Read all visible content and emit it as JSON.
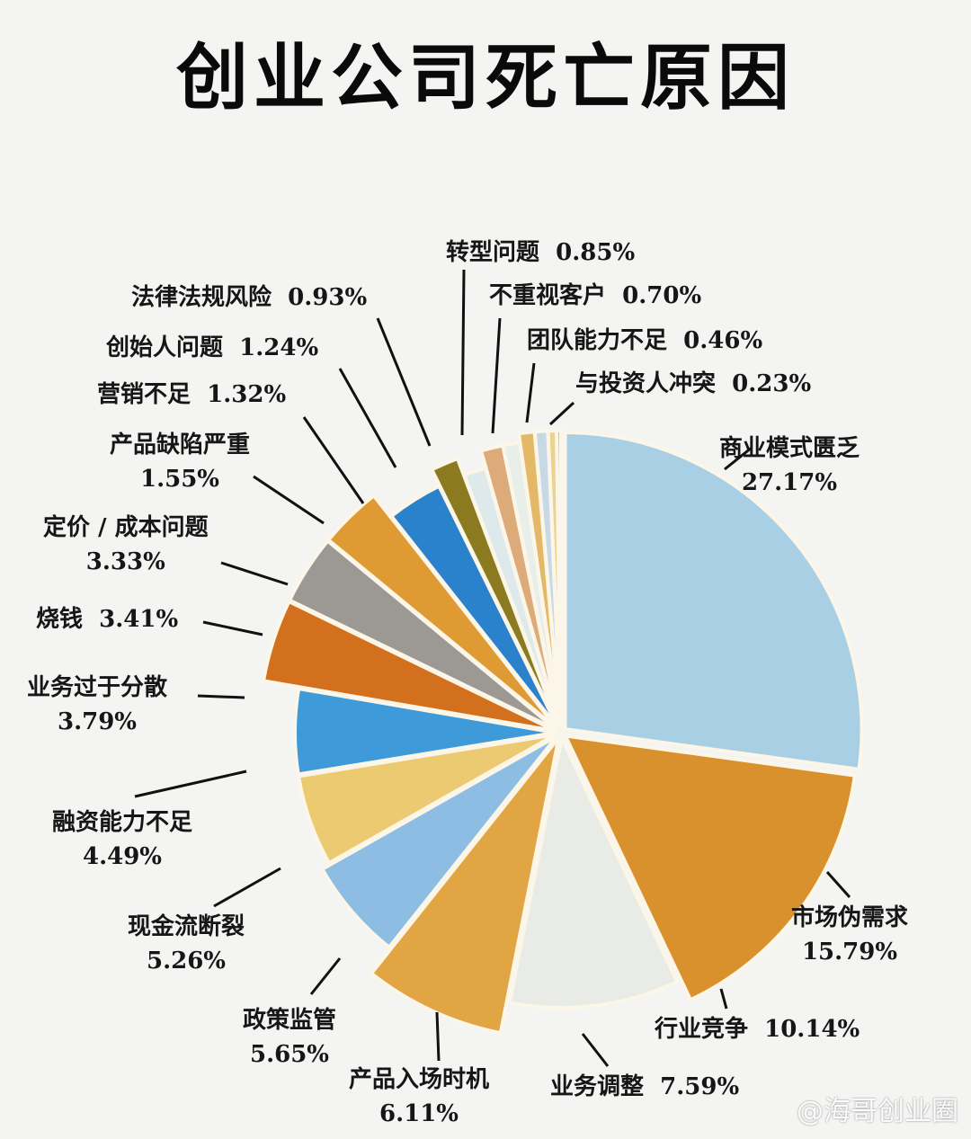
{
  "title": "创业公司死亡原因",
  "watermark": "@海哥创业圈",
  "chart_data": {
    "type": "pie",
    "title": "创业公司死亡原因",
    "unit": "%",
    "categories": [
      "商业模式匮乏",
      "市场伪需求",
      "行业竞争",
      "业务调整",
      "产品入场时机",
      "政策监管",
      "现金流断裂",
      "融资能力不足",
      "业务过于分散",
      "烧钱",
      "定价 / 成本问题",
      "产品缺陷严重",
      "营销不足",
      "创始人问题",
      "法律法规风险",
      "转型问题",
      "不重视客户",
      "团队能力不足",
      "与投资人冲突"
    ],
    "values": [
      27.17,
      15.79,
      10.14,
      7.59,
      6.11,
      5.65,
      5.26,
      4.49,
      3.79,
      3.41,
      3.33,
      1.55,
      1.32,
      1.24,
      0.93,
      0.85,
      0.7,
      0.46,
      0.23
    ],
    "colors": [
      "#a9cfe4",
      "#d9912e",
      "#e9ebe6",
      "#e2a544",
      "#8dbde2",
      "#ecca72",
      "#3e9ad8",
      "#d3701e",
      "#9c9994",
      "#df9a33",
      "#2a82cc",
      "#8b7a1f",
      "#dde9ea",
      "#ddaa7a",
      "#e8eee9",
      "#e3b866",
      "#c6d9e4",
      "#ecd292",
      "#93b9d6"
    ],
    "labels": [
      {
        "name": "商业模式匮乏",
        "pct": "27.17%"
      },
      {
        "name": "市场伪需求",
        "pct": "15.79%"
      },
      {
        "name": "行业竞争",
        "pct": "10.14%"
      },
      {
        "name": "业务调整",
        "pct": "7.59%"
      },
      {
        "name": "产品入场时机",
        "pct": "6.11%"
      },
      {
        "name": "政策监管",
        "pct": "5.65%"
      },
      {
        "name": "现金流断裂",
        "pct": "5.26%"
      },
      {
        "name": "融资能力不足",
        "pct": "4.49%"
      },
      {
        "name": "业务过于分散",
        "pct": "3.79%"
      },
      {
        "name": "烧钱",
        "pct": "3.41%"
      },
      {
        "name": "定价 / 成本问题",
        "pct": "3.33%"
      },
      {
        "name": "产品缺陷严重",
        "pct": "1.55%"
      },
      {
        "name": "营销不足",
        "pct": "1.32%"
      },
      {
        "name": "创始人问题",
        "pct": "1.24%"
      },
      {
        "name": "法律法规风险",
        "pct": "0.93%"
      },
      {
        "name": "转型问题",
        "pct": "0.85%"
      },
      {
        "name": "不重视客户",
        "pct": "0.70%"
      },
      {
        "name": "团队能力不足",
        "pct": "0.46%"
      },
      {
        "name": "与投资人冲突",
        "pct": "0.23%"
      }
    ],
    "legend": "none (callout labels)",
    "start_angle": "12 o'clock, clockwise"
  }
}
